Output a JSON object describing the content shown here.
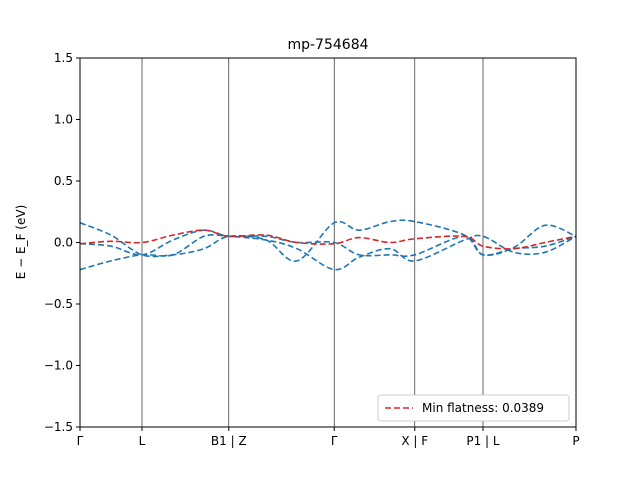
{
  "chart_data": {
    "type": "line",
    "title": "mp-754684",
    "ylabel": "E − E_F (eV)",
    "ylim": [
      -1.5,
      1.5
    ],
    "yticks": [
      -1.5,
      -1.0,
      -0.5,
      0.0,
      0.5,
      1.0,
      1.5
    ],
    "ytick_labels": [
      "−1.5",
      "−1.0",
      "−0.5",
      "0.0",
      "0.5",
      "1.0",
      "1.5"
    ],
    "xlim": [
      0,
      8
    ],
    "xticks": [
      0,
      1,
      2.4,
      4.1,
      5.4,
      6.5,
      8
    ],
    "xtick_labels": [
      "Γ",
      "L",
      "B1 | Z",
      "Γ",
      "X | F",
      "P1 | L",
      "P"
    ],
    "grid": false,
    "legend": {
      "placement": "lower-right",
      "entries": [
        "Min flatness: 0.0389"
      ]
    },
    "colors": {
      "blue": "#1f77b4",
      "red": "#d62728"
    },
    "series": [
      {
        "color": "#1f77b4",
        "style": "dashed",
        "points": [
          [
            0,
            0.16
          ],
          [
            0.5,
            0.06
          ],
          [
            1,
            -0.1
          ],
          [
            1.5,
            -0.1
          ],
          [
            2,
            -0.05
          ],
          [
            2.4,
            0.05
          ],
          [
            3,
            0.02
          ],
          [
            3.5,
            -0.15
          ],
          [
            4.1,
            0.16
          ],
          [
            4.5,
            0.1
          ],
          [
            5,
            0.17
          ],
          [
            5.4,
            0.17
          ],
          [
            6.2,
            0.06
          ],
          [
            6.5,
            -0.1
          ],
          [
            7,
            -0.04
          ],
          [
            7.5,
            0.14
          ],
          [
            8,
            0.05
          ]
        ]
      },
      {
        "color": "#1f77b4",
        "style": "dashed",
        "points": [
          [
            0,
            -0.22
          ],
          [
            0.5,
            -0.15
          ],
          [
            1,
            -0.1
          ],
          [
            1.5,
            -0.1
          ],
          [
            2,
            0.05
          ],
          [
            2.4,
            0.05
          ],
          [
            3,
            0.02
          ],
          [
            3.5,
            -0.05
          ],
          [
            4.1,
            -0.22
          ],
          [
            4.5,
            -0.12
          ],
          [
            5,
            -0.05
          ],
          [
            5.4,
            -0.15
          ],
          [
            6.2,
            0.02
          ],
          [
            6.5,
            0.05
          ],
          [
            7,
            -0.08
          ],
          [
            7.5,
            -0.08
          ],
          [
            8,
            0.05
          ]
        ]
      },
      {
        "color": "#1f77b4",
        "style": "dashed",
        "points": [
          [
            0,
            -0.01
          ],
          [
            0.5,
            -0.03
          ],
          [
            1,
            -0.1
          ],
          [
            1.5,
            0.02
          ],
          [
            2,
            0.1
          ],
          [
            2.4,
            0.05
          ],
          [
            3,
            0.05
          ],
          [
            3.5,
            0.0
          ],
          [
            4.1,
            0.0
          ],
          [
            4.5,
            -0.1
          ],
          [
            5,
            -0.1
          ],
          [
            5.4,
            -0.1
          ],
          [
            6.2,
            0.05
          ],
          [
            6.5,
            -0.1
          ],
          [
            7,
            -0.05
          ],
          [
            7.5,
            -0.03
          ],
          [
            8,
            0.05
          ]
        ]
      },
      {
        "color": "#d62728",
        "style": "dashed",
        "points": [
          [
            0,
            -0.01
          ],
          [
            0.5,
            0.01
          ],
          [
            1,
            0.0
          ],
          [
            1.5,
            0.06
          ],
          [
            2,
            0.1
          ],
          [
            2.4,
            0.05
          ],
          [
            3,
            0.06
          ],
          [
            3.5,
            0.0
          ],
          [
            4.1,
            -0.01
          ],
          [
            4.5,
            0.04
          ],
          [
            5,
            0.0
          ],
          [
            5.4,
            0.03
          ],
          [
            6.2,
            0.05
          ],
          [
            6.5,
            -0.03
          ],
          [
            7,
            -0.05
          ],
          [
            7.5,
            0.0
          ],
          [
            8,
            0.05
          ]
        ]
      }
    ]
  }
}
